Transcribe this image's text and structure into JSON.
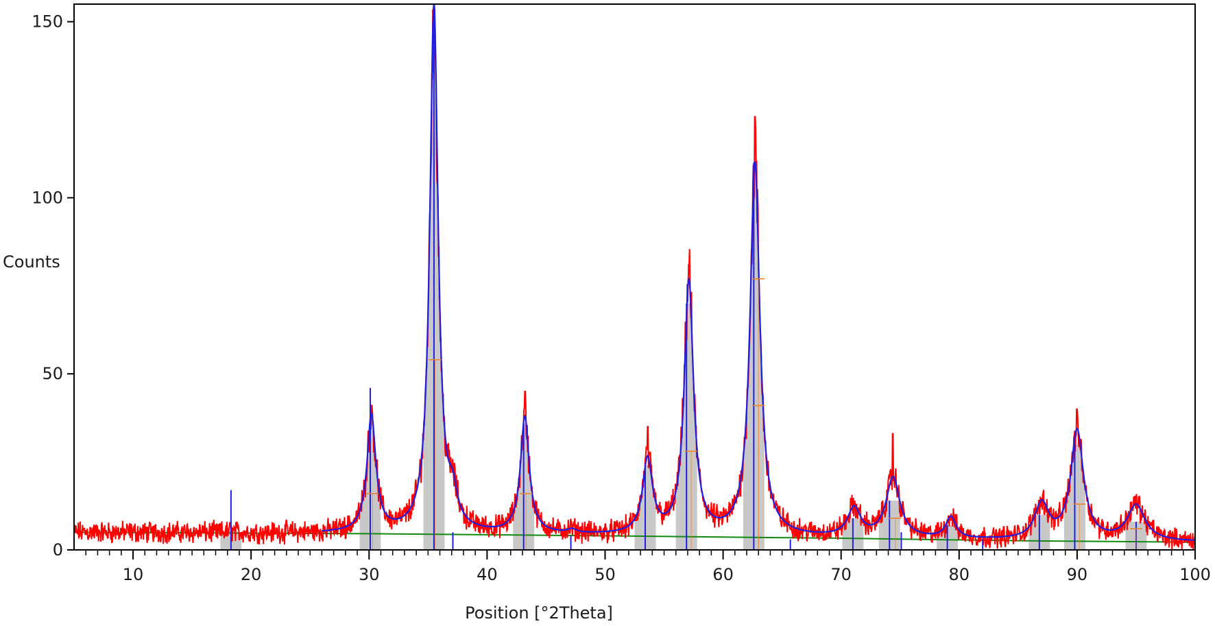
{
  "chart_data": {
    "type": "line",
    "title": "",
    "xlabel": "Position [°2Theta]",
    "ylabel": "Counts",
    "xlim": [
      5,
      100
    ],
    "ylim": [
      0,
      155
    ],
    "x_ticks": [
      10,
      20,
      30,
      40,
      50,
      60,
      70,
      80,
      90,
      100
    ],
    "y_ticks": [
      0,
      50,
      100,
      150
    ],
    "grid": false,
    "legend": "none",
    "colors": {
      "observed": "#ff0000",
      "calculated": "#1f1fe0",
      "background": "#0f8a0f",
      "peak_fill": "#c8c8c8",
      "peak_markers": "#1f1fe0",
      "phase_markers": "#f08020",
      "axis": "#000000"
    },
    "background_line": [
      [
        5,
        5.0
      ],
      [
        30,
        4.6
      ],
      [
        50,
        4.0
      ],
      [
        70,
        3.3
      ],
      [
        85,
        2.6
      ],
      [
        100,
        2.2
      ]
    ],
    "peaks": [
      {
        "position": 18.3,
        "height": 0.5,
        "fwhm": 0.6
      },
      {
        "position": 30.2,
        "height": 33,
        "fwhm": 0.9
      },
      {
        "position": 35.5,
        "height": 150,
        "fwhm": 0.85
      },
      {
        "position": 37.1,
        "height": 8,
        "fwhm": 0.9
      },
      {
        "position": 43.2,
        "height": 33,
        "fwhm": 0.9
      },
      {
        "position": 47.2,
        "height": 1,
        "fwhm": 0.9
      },
      {
        "position": 53.6,
        "height": 21,
        "fwhm": 1.0
      },
      {
        "position": 57.1,
        "height": 72,
        "fwhm": 0.95
      },
      {
        "position": 62.7,
        "height": 106,
        "fwhm": 1.0
      },
      {
        "position": 71.1,
        "height": 8,
        "fwhm": 1.3
      },
      {
        "position": 74.4,
        "height": 17,
        "fwhm": 1.4
      },
      {
        "position": 79.3,
        "height": 6,
        "fwhm": 1.0
      },
      {
        "position": 87.0,
        "height": 10,
        "fwhm": 1.4
      },
      {
        "position": 90.0,
        "height": 31,
        "fwhm": 1.3
      },
      {
        "position": 95.0,
        "height": 10,
        "fwhm": 1.8
      }
    ],
    "observed_peak_maxima": [
      {
        "position": 30.2,
        "counts": 41
      },
      {
        "position": 35.5,
        "counts": 155
      },
      {
        "position": 43.2,
        "counts": 45
      },
      {
        "position": 53.6,
        "counts": 35
      },
      {
        "position": 57.1,
        "counts": 81
      },
      {
        "position": 62.7,
        "counts": 123
      },
      {
        "position": 74.4,
        "counts": 33
      },
      {
        "position": 90.0,
        "counts": 40
      }
    ],
    "reference_lines": [
      {
        "position": 18.3,
        "height": 17
      },
      {
        "position": 30.1,
        "height": 46
      },
      {
        "position": 35.5,
        "height": 155
      },
      {
        "position": 37.1,
        "height": 5
      },
      {
        "position": 43.1,
        "height": 36
      },
      {
        "position": 47.1,
        "height": 4
      },
      {
        "position": 53.4,
        "height": 24
      },
      {
        "position": 56.9,
        "height": 70
      },
      {
        "position": 62.6,
        "height": 110
      },
      {
        "position": 65.7,
        "height": 3
      },
      {
        "position": 71.0,
        "height": 9
      },
      {
        "position": 74.1,
        "height": 14
      },
      {
        "position": 75.1,
        "height": 5
      },
      {
        "position": 79.0,
        "height": 7
      },
      {
        "position": 82.0,
        "height": 3
      },
      {
        "position": 86.8,
        "height": 10
      },
      {
        "position": 89.8,
        "height": 30
      },
      {
        "position": 95.0,
        "height": 8
      }
    ],
    "phase_markers": [
      {
        "position": 30.3,
        "height": 16
      },
      {
        "position": 35.6,
        "height": 54
      },
      {
        "position": 43.3,
        "height": 16
      },
      {
        "position": 57.3,
        "height": 28
      },
      {
        "position": 63.0,
        "height": 41
      },
      {
        "position": 63.0,
        "height": 77
      },
      {
        "position": 74.6,
        "height": 9
      },
      {
        "position": 90.2,
        "height": 13
      },
      {
        "position": 95.0,
        "height": 6
      }
    ],
    "noise_amplitude": 3.2
  }
}
